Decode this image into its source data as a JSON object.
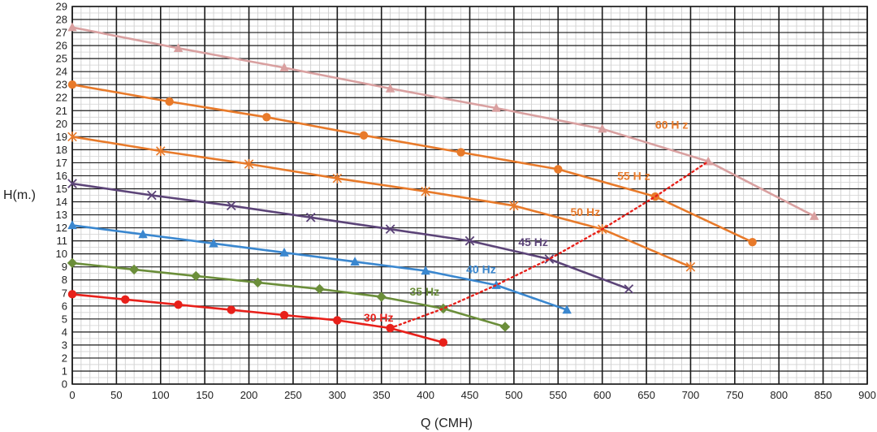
{
  "chart_data": {
    "type": "line",
    "title": "",
    "xlabel": "Q (CMH)",
    "ylabel": "H(m.)",
    "xlim": [
      0,
      900
    ],
    "ylim": [
      0,
      29
    ],
    "x_ticks": [
      0,
      50,
      100,
      150,
      200,
      250,
      300,
      350,
      400,
      450,
      500,
      550,
      600,
      650,
      700,
      750,
      800,
      850,
      900
    ],
    "y_ticks": [
      0,
      1,
      2,
      3,
      4,
      5,
      6,
      7,
      8,
      9,
      10,
      11,
      12,
      13,
      14,
      15,
      16,
      17,
      18,
      19,
      20,
      21,
      22,
      23,
      24,
      25,
      26,
      27,
      28,
      29
    ],
    "grid": true,
    "minor_grid": true,
    "series": [
      {
        "name": "30 Hz",
        "color": "#e8201a",
        "marker": "circle",
        "label_at": [
          330,
          4.8
        ],
        "x": [
          0,
          60,
          120,
          180,
          240,
          300,
          360,
          420
        ],
        "y": [
          6.9,
          6.5,
          6.1,
          5.7,
          5.3,
          4.9,
          4.3,
          3.2
        ]
      },
      {
        "name": "35 Hz",
        "color": "#6b8e3a",
        "marker": "diamond",
        "label_at": [
          382,
          6.8
        ],
        "x": [
          0,
          70,
          140,
          210,
          280,
          350,
          420,
          490
        ],
        "y": [
          9.3,
          8.8,
          8.3,
          7.8,
          7.3,
          6.7,
          5.8,
          4.4
        ]
      },
      {
        "name": "40 Hz",
        "color": "#3a87cf",
        "marker": "triangle",
        "label_at": [
          446,
          8.5
        ],
        "x": [
          0,
          80,
          160,
          240,
          320,
          400,
          480,
          560
        ],
        "y": [
          12.2,
          11.5,
          10.8,
          10.1,
          9.4,
          8.7,
          7.6,
          5.7
        ]
      },
      {
        "name": "45 Hz",
        "color": "#5c4478",
        "marker": "x",
        "label_at": [
          505,
          10.6
        ],
        "x": [
          0,
          90,
          180,
          270,
          360,
          450,
          540,
          630
        ],
        "y": [
          15.4,
          14.5,
          13.7,
          12.8,
          11.9,
          11.0,
          9.6,
          7.3
        ]
      },
      {
        "name": "50 Hz",
        "color": "#e87a2a",
        "marker": "star",
        "label_at": [
          564,
          12.9
        ],
        "x": [
          0,
          100,
          200,
          300,
          400,
          500,
          600,
          700
        ],
        "y": [
          19.0,
          17.9,
          16.9,
          15.8,
          14.8,
          13.7,
          11.9,
          9.0
        ]
      },
      {
        "name": "55 H z",
        "color": "#e87a2a",
        "marker": "circle",
        "label_at": [
          617,
          15.7
        ],
        "x": [
          0,
          110,
          220,
          330,
          440,
          550,
          660,
          770
        ],
        "y": [
          23.0,
          21.7,
          20.5,
          19.1,
          17.8,
          16.5,
          14.4,
          10.9
        ]
      },
      {
        "name": "60 H z",
        "color": "#d9a0a0",
        "label_color": "#e87a2a",
        "marker": "triangle",
        "label_at": [
          660,
          19.6
        ],
        "x": [
          0,
          120,
          240,
          360,
          480,
          600,
          720,
          840
        ],
        "y": [
          27.4,
          25.8,
          24.3,
          22.7,
          21.2,
          19.6,
          17.1,
          12.9
        ]
      }
    ],
    "bep_line": {
      "color": "#e8201a",
      "style": "dotted",
      "x": [
        360,
        420,
        480,
        540,
        600,
        660,
        720
      ],
      "y": [
        4.3,
        5.8,
        7.6,
        9.6,
        11.9,
        14.4,
        17.1
      ]
    }
  }
}
